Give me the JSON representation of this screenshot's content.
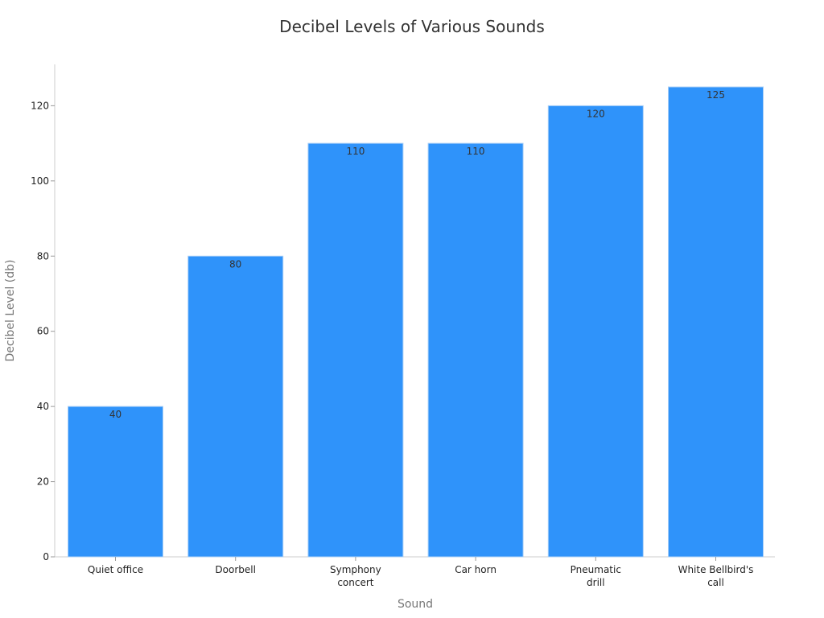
{
  "chart_data": {
    "type": "bar",
    "title": "Decibel Levels of Various Sounds",
    "xlabel": "Sound",
    "ylabel": "Decibel Level (db)",
    "categories": [
      "Quiet office",
      "Doorbell",
      "Symphony concert",
      "Car horn",
      "Pneumatic drill",
      "White Bellbird's call"
    ],
    "category_lines": [
      [
        "Quiet office"
      ],
      [
        "Doorbell"
      ],
      [
        "Symphony",
        "concert"
      ],
      [
        "Car horn"
      ],
      [
        "Pneumatic",
        "drill"
      ],
      [
        "White Bellbird's",
        "call"
      ]
    ],
    "values": [
      40,
      80,
      110,
      110,
      120,
      125
    ],
    "data_labels": [
      "40",
      "80",
      "110",
      "110",
      "120",
      "125"
    ],
    "ylim": [
      0,
      131
    ],
    "yticks": [
      0,
      20,
      40,
      60,
      80,
      100,
      120
    ],
    "grid": false,
    "legend": "none",
    "bar_color": "#2f93fa"
  }
}
